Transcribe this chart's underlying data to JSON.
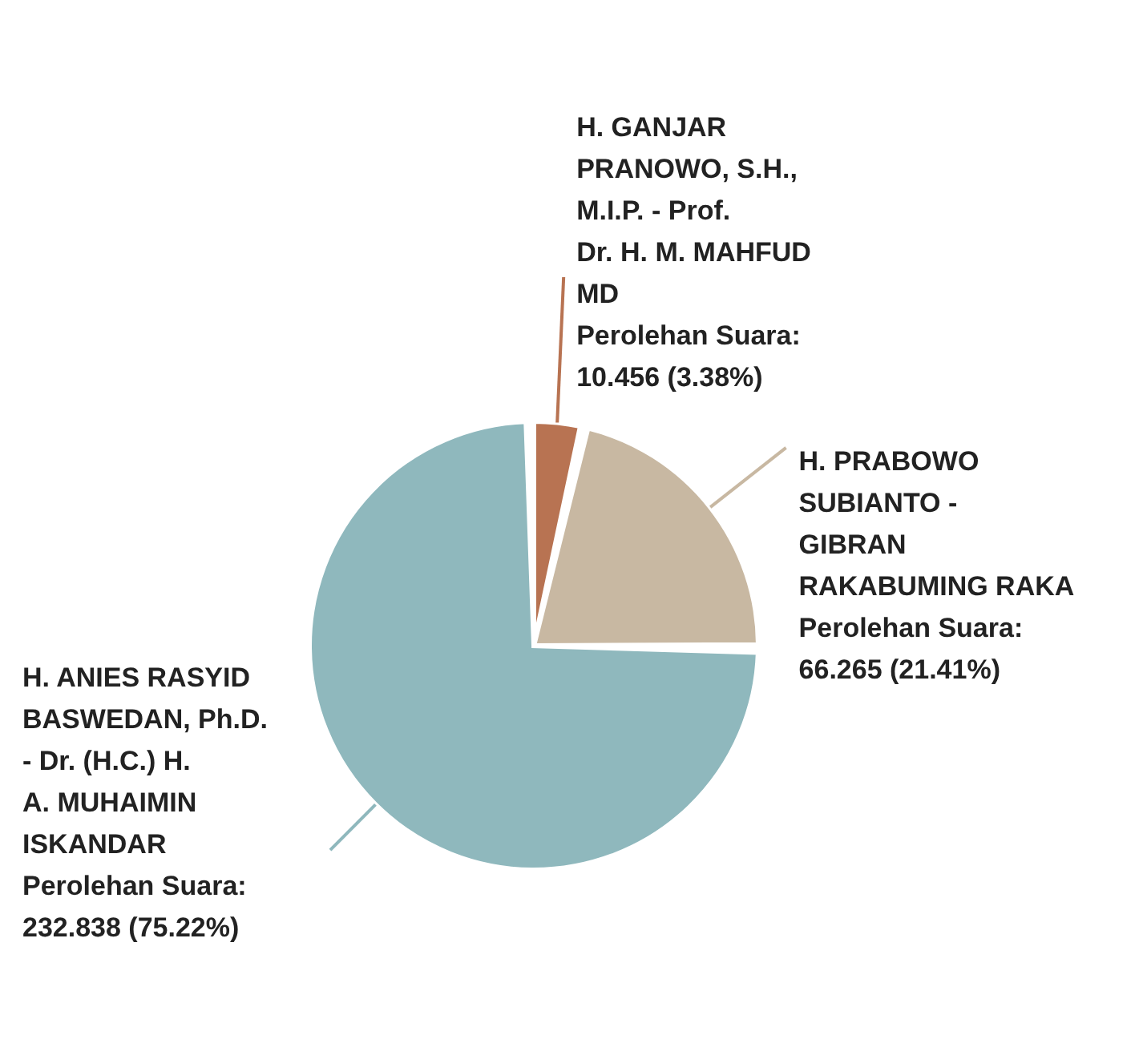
{
  "chart_data": {
    "type": "pie",
    "categories": [
      "H. GANJAR PRANOWO, S.H., M.I.P. - Prof. Dr. H. M. MAHFUD MD",
      "H. PRABOWO SUBIANTO - GIBRAN RAKABUMING RAKA",
      "H. ANIES RASYID BASWEDAN, Ph.D. - Dr. (H.C.) H. A. MUHAIMIN ISKANDAR"
    ],
    "values": [
      3.38,
      21.41,
      75.22
    ],
    "value_labels": [
      "Perolehan Suara: 10.456 (3.38%)",
      "Perolehan Suara: 66.265 (21.41%)",
      "Perolehan Suara: 232.838 (75.22%)"
    ],
    "colors": [
      "#b87352",
      "#c8b8a2",
      "#8fb8bd"
    ]
  }
}
